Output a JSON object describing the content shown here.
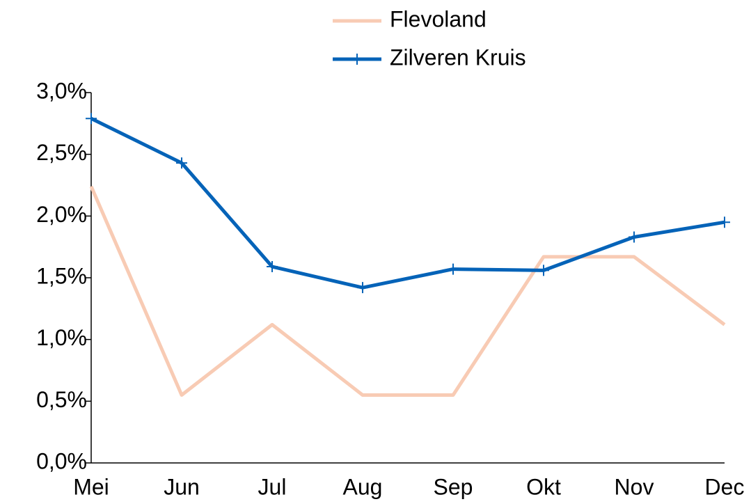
{
  "chart_data": {
    "type": "line",
    "categories": [
      "Mei",
      "Jun",
      "Jul",
      "Aug",
      "Sep",
      "Okt",
      "Nov",
      "Dec"
    ],
    "series": [
      {
        "name": "Flevoland",
        "color": "#f8cbb4",
        "values": [
          2.24,
          0.55,
          1.12,
          0.55,
          0.55,
          1.67,
          1.67,
          1.12
        ]
      },
      {
        "name": "Zilveren Kruis",
        "color": "#0563b8",
        "marker": "+",
        "values": [
          2.79,
          2.43,
          1.59,
          1.42,
          1.57,
          1.56,
          1.83,
          1.95
        ]
      }
    ],
    "ylim": [
      0,
      3
    ],
    "yticks": [
      {
        "value": 0,
        "label": "0,0%"
      },
      {
        "value": 0.5,
        "label": "0,5%"
      },
      {
        "value": 1,
        "label": "1,0%"
      },
      {
        "value": 1.5,
        "label": "1,5%"
      },
      {
        "value": 2,
        "label": "2,0%"
      },
      {
        "value": 2.5,
        "label": "2,5%"
      },
      {
        "value": 3,
        "label": "3,0%"
      }
    ],
    "grid": false,
    "legend": "top"
  }
}
